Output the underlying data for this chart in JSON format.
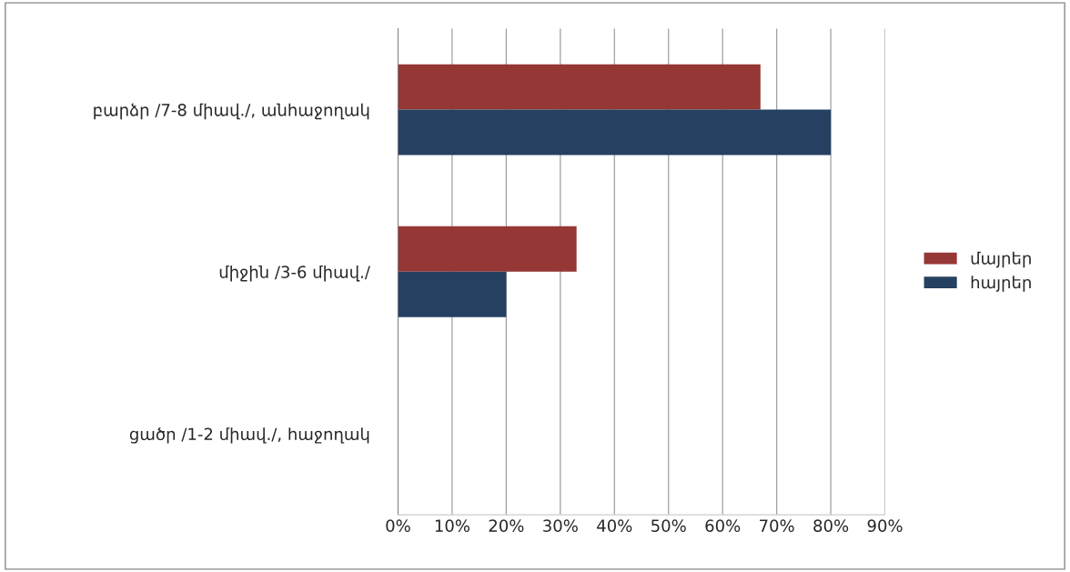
{
  "chart_data": {
    "type": "bar",
    "orientation": "horizontal",
    "categories": [
      "բարձր /7-8 միավ./, անհաջողակ",
      "միջին /3-6 միավ./",
      "ցածր /1-2 միավ./, հաջողակ"
    ],
    "series": [
      {
        "name": "մայրեր",
        "color": "#953735",
        "values": [
          67,
          33,
          0
        ]
      },
      {
        "name": "հայրեր",
        "color": "#254061",
        "values": [
          80,
          20,
          0
        ]
      }
    ],
    "xlim": [
      0,
      90
    ],
    "xticks": [
      {
        "value": 0,
        "label": "0%"
      },
      {
        "value": 10,
        "label": "10%"
      },
      {
        "value": 20,
        "label": "20%"
      },
      {
        "value": 30,
        "label": "30%"
      },
      {
        "value": 40,
        "label": "40%"
      },
      {
        "value": 50,
        "label": "50%"
      },
      {
        "value": 60,
        "label": "60%"
      },
      {
        "value": 70,
        "label": "70%"
      },
      {
        "value": 80,
        "label": "80%"
      },
      {
        "value": 90,
        "label": "90%"
      }
    ],
    "grid": "x",
    "legend": "right"
  }
}
